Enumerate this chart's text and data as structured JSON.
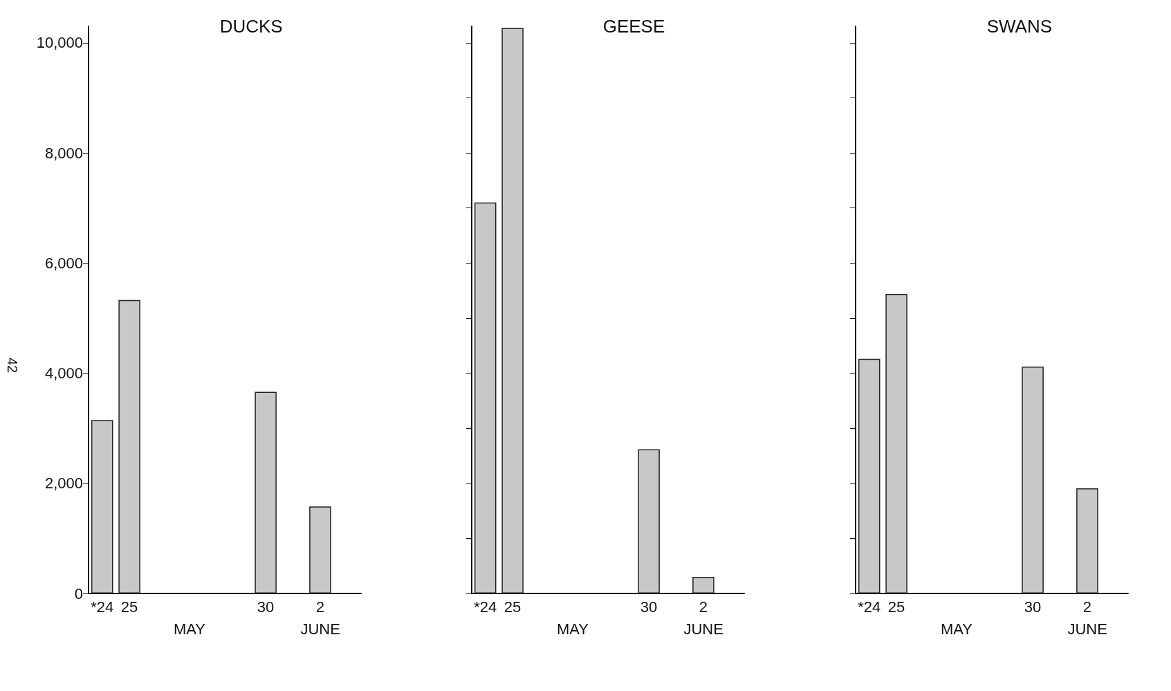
{
  "chart_data": [
    {
      "type": "bar",
      "title": "DUCKS",
      "categories": [
        "*24",
        "25",
        null,
        null,
        null,
        null,
        "30",
        null,
        "2"
      ],
      "values": [
        3150,
        5330,
        null,
        null,
        null,
        null,
        3660,
        null,
        1580
      ],
      "color": "#c8c8c8",
      "ylim": [
        0,
        10300
      ],
      "yticks": [
        0,
        {
          "value": 2000,
          "label": "2,000"
        },
        {
          "value": 4000,
          "label": "4,000"
        },
        {
          "value": 6000,
          "label": "6,000"
        },
        {
          "value": 8000,
          "label": "8,000"
        },
        {
          "value": 10000,
          "label": "10,000"
        }
      ],
      "grid": false,
      "annotations": [
        "MAY",
        "JUNE",
        "42"
      ]
    },
    {
      "type": "bar",
      "title": "GEESE",
      "categories": [
        "*24",
        "25",
        null,
        null,
        null,
        null,
        "30",
        null,
        "2"
      ],
      "values": [
        7100,
        10270,
        null,
        null,
        null,
        null,
        2620,
        null,
        300
      ],
      "color": "#c8c8c8",
      "ylim": [
        0,
        10300
      ],
      "yticks": [
        {
          "value": 0,
          "label": null
        },
        {
          "value": 1000,
          "label": null
        },
        {
          "value": 2000,
          "label": null
        },
        {
          "value": 3000,
          "label": null
        },
        {
          "value": 4000,
          "label": null
        },
        {
          "value": 5000,
          "label": null
        },
        {
          "value": 6000,
          "label": null
        },
        {
          "value": 7000,
          "label": null
        },
        {
          "value": 8000,
          "label": null
        },
        {
          "value": 9000,
          "label": null
        },
        {
          "value": 10000,
          "label": null
        }
      ],
      "tick_labels": "x",
      "grid": false,
      "annotations": [
        "MAY",
        "JUNE"
      ]
    },
    {
      "type": "bar",
      "title": "SWANS",
      "categories": [
        "*24",
        "25",
        null,
        null,
        null,
        null,
        "30",
        null,
        "2"
      ],
      "values": [
        4260,
        5440,
        null,
        null,
        null,
        null,
        4120,
        null,
        1910
      ],
      "color": "#c8c8c8",
      "ylim": [
        0,
        10300
      ],
      "yticks": [
        {
          "value": 0,
          "label": null
        },
        {
          "value": 1000,
          "label": null
        },
        {
          "value": 2000,
          "label": null
        },
        {
          "value": 3000,
          "label": null
        },
        {
          "value": 4000,
          "label": null
        },
        {
          "value": 5000,
          "label": null
        },
        {
          "value": 6000,
          "label": null
        },
        {
          "value": 7000,
          "label": null
        },
        {
          "value": 8000,
          "label": null
        },
        {
          "value": 9000,
          "label": null
        },
        {
          "value": 10000,
          "label": null
        }
      ],
      "tick_labels": "x",
      "grid": false,
      "annotations": [
        "MAY",
        "JUNE"
      ]
    }
  ]
}
